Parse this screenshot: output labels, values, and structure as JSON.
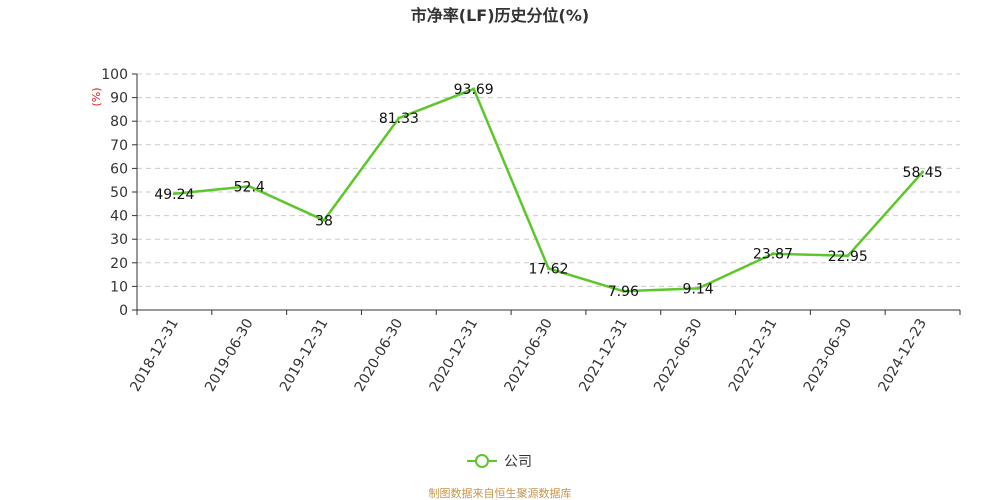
{
  "chart_data": {
    "type": "line",
    "title": "市净率(LF)历史分位(%)",
    "ylabel": "(%)",
    "xlabel": "",
    "ylim": [
      0,
      100
    ],
    "yticks": [
      0,
      10,
      20,
      30,
      40,
      50,
      60,
      70,
      80,
      90,
      100
    ],
    "grid": true,
    "legend_position": "bottom-center",
    "categories": [
      "2018-12-31",
      "2019-06-30",
      "2019-12-31",
      "2020-06-30",
      "2020-12-31",
      "2021-06-30",
      "2021-12-31",
      "2022-06-30",
      "2022-12-31",
      "2023-06-30",
      "2024-12-23"
    ],
    "series": [
      {
        "name": "公司",
        "color": "#5cc72a",
        "values": [
          49.24,
          52.4,
          38,
          81.33,
          93.69,
          17.62,
          7.96,
          9.14,
          23.87,
          22.95,
          58.45
        ],
        "labels": [
          "49.24",
          "52.4",
          "38",
          "81.33",
          "93.69",
          "17.62",
          "7.96",
          "9.14",
          "23.87",
          "22.95",
          "58.45"
        ]
      }
    ]
  },
  "source": "制图数据来自恒生聚源数据库"
}
